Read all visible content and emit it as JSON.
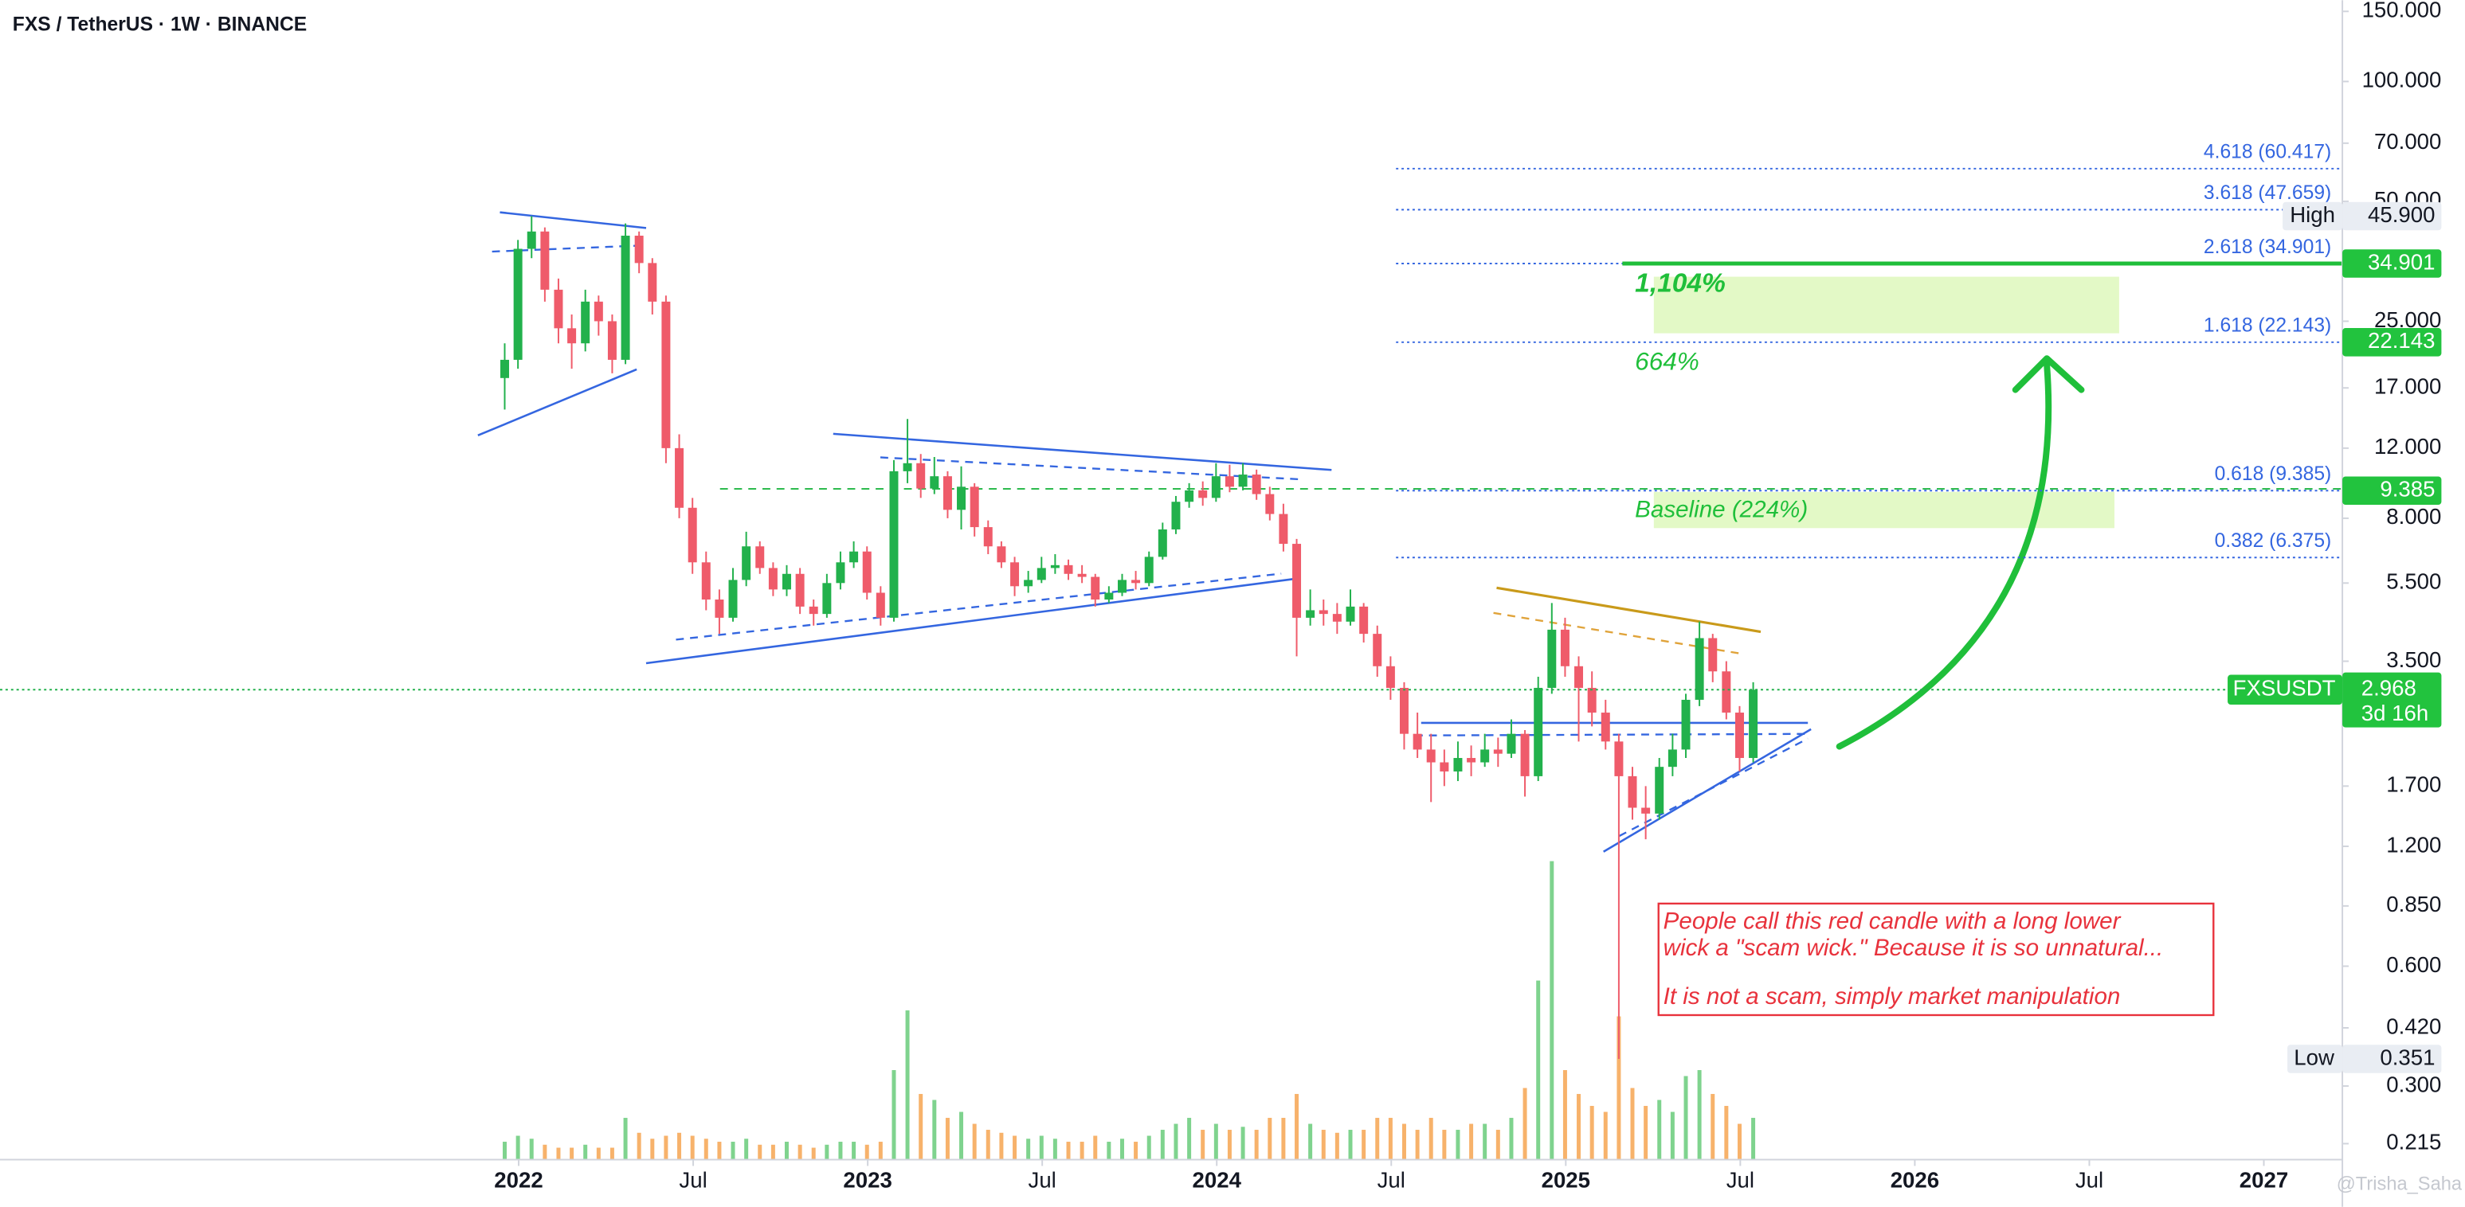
{
  "chart_data": {
    "type": "candlestick",
    "title": "FXS / TetherUS · 1W · BINANCE",
    "log_scale": true,
    "xlim": [
      2020.514,
      2027.225
    ],
    "ylim": [
      0.196,
      160
    ],
    "xticks": [
      2022,
      {
        "value": 2022.5,
        "label": "Jul"
      },
      2023,
      {
        "value": 2023.5,
        "label": "Jul"
      },
      2024,
      {
        "value": 2024.5,
        "label": "Jul"
      },
      2025,
      {
        "value": 2025.5,
        "label": "Jul"
      },
      2026,
      {
        "value": 2026.5,
        "label": "Jul"
      },
      2027
    ],
    "yticks": [
      {
        "value": 150,
        "label": "150.000"
      },
      {
        "value": 100,
        "label": "100.000"
      },
      {
        "value": 70,
        "label": "70.000"
      },
      {
        "value": 50,
        "label": "50.000"
      },
      {
        "value": 25,
        "label": "25.000"
      },
      {
        "value": 17,
        "label": "17.000"
      },
      {
        "value": 12,
        "label": "12.000"
      },
      {
        "value": 8,
        "label": "8.000"
      },
      {
        "value": 5.5,
        "label": "5.500"
      },
      {
        "value": 3.5,
        "label": "3.500"
      },
      {
        "value": 1.7,
        "label": "1.700"
      },
      {
        "value": 1.2,
        "label": "1.200"
      },
      {
        "value": 0.85,
        "label": "0.850"
      },
      {
        "value": 0.6,
        "label": "0.600"
      },
      {
        "value": 0.42,
        "label": "0.420"
      },
      {
        "value": 0.3,
        "label": "0.300"
      },
      0.215
    ],
    "colors": {
      "up": "#22b14c",
      "down": "#ef5b6a",
      "volume_up": "#7fd38e",
      "volume_down": "#f7b26b"
    },
    "x": [
      2021.96,
      2021.998,
      2022.037,
      2022.075,
      2022.114,
      2022.152,
      2022.191,
      2022.229,
      2022.268,
      2022.306,
      2022.345,
      2022.383,
      2022.422,
      2022.46,
      2022.498,
      2022.537,
      2022.575,
      2022.614,
      2022.652,
      2022.691,
      2022.729,
      2022.768,
      2022.806,
      2022.845,
      2022.883,
      2022.922,
      2022.96,
      2022.998,
      2023.037,
      2023.075,
      2023.114,
      2023.152,
      2023.191,
      2023.229,
      2023.268,
      2023.306,
      2023.345,
      2023.383,
      2023.421,
      2023.46,
      2023.498,
      2023.537,
      2023.575,
      2023.614,
      2023.652,
      2023.691,
      2023.729,
      2023.768,
      2023.806,
      2023.845,
      2023.883,
      2023.921,
      2023.96,
      2023.998,
      2024.037,
      2024.075,
      2024.114,
      2024.152,
      2024.191,
      2024.229,
      2024.268,
      2024.306,
      2024.345,
      2024.383,
      2024.421,
      2024.46,
      2024.498,
      2024.537,
      2024.575,
      2024.614,
      2024.652,
      2024.691,
      2024.729,
      2024.768,
      2024.806,
      2024.844,
      2024.883,
      2024.921,
      2024.96,
      2024.998,
      2025.037,
      2025.075,
      2025.114,
      2025.152,
      2025.191,
      2025.229,
      2025.268,
      2025.306,
      2025.344,
      2025.383,
      2025.421,
      2025.46,
      2025.498,
      2025.537
    ],
    "open": [
      18,
      20,
      38,
      42,
      30,
      24,
      22,
      28,
      25,
      20,
      41,
      35,
      28,
      12,
      8.5,
      6.2,
      5.0,
      4.5,
      5.6,
      6.8,
      6.0,
      5.3,
      5.8,
      4.8,
      4.6,
      5.5,
      6.2,
      6.6,
      5.2,
      4.5,
      10.5,
      11.0,
      9.5,
      10.2,
      8.4,
      9.6,
      7.6,
      6.8,
      6.2,
      5.4,
      5.6,
      6.0,
      6.1,
      5.8,
      5.7,
      5.0,
      5.2,
      5.6,
      5.5,
      6.4,
      7.5,
      8.8,
      9.4,
      9.0,
      10.2,
      9.6,
      10.3,
      9.2,
      8.2,
      6.9,
      4.5,
      4.7,
      4.6,
      4.4,
      4.8,
      4.1,
      3.4,
      3.0,
      2.3,
      2.1,
      1.95,
      1.85,
      2.0,
      1.95,
      2.1,
      2.05,
      2.3,
      1.8,
      3.0,
      4.2,
      3.4,
      3.0,
      2.6,
      2.2,
      1.8,
      1.5,
      1.45,
      1.9,
      2.1,
      2.8,
      4.0,
      3.3,
      2.6,
      2.0
    ],
    "high": [
      22,
      40,
      45.9,
      43,
      32,
      26,
      30,
      29,
      26,
      44,
      42,
      36,
      29,
      13,
      9,
      6.6,
      5.3,
      6.0,
      7.4,
      7.0,
      6.2,
      6.1,
      6.0,
      5.0,
      5.8,
      6.6,
      7.0,
      6.8,
      5.4,
      11.2,
      14.2,
      11.6,
      11.4,
      10.5,
      10.8,
      9.8,
      7.9,
      7.0,
      6.4,
      5.9,
      6.4,
      6.5,
      6.3,
      6.1,
      5.8,
      5.4,
      5.8,
      5.9,
      6.6,
      7.8,
      9.1,
      9.8,
      9.9,
      11.0,
      10.9,
      11.0,
      10.6,
      9.6,
      8.7,
      7.1,
      5.3,
      5.0,
      4.9,
      5.3,
      4.9,
      4.3,
      3.6,
      3.1,
      2.6,
      2.3,
      2.1,
      2.2,
      2.15,
      2.3,
      2.25,
      2.5,
      2.35,
      3.2,
      4.9,
      4.5,
      3.6,
      3.3,
      2.8,
      2.3,
      1.9,
      1.7,
      2.0,
      2.3,
      2.9,
      4.4,
      4.1,
      3.5,
      2.7,
      3.1
    ],
    "low": [
      15,
      19,
      36,
      28,
      22,
      19,
      21,
      23,
      18.5,
      19.5,
      33,
      26,
      11,
      8,
      5.8,
      4.7,
      4.1,
      4.4,
      5.4,
      5.8,
      5.1,
      5.1,
      4.6,
      4.3,
      4.5,
      5.3,
      6.0,
      5.0,
      4.3,
      4.4,
      9.8,
      9.0,
      9.2,
      8.0,
      7.5,
      7.2,
      6.5,
      6.0,
      5.1,
      5.2,
      5.5,
      5.8,
      5.6,
      5.5,
      4.8,
      4.9,
      5.1,
      5.3,
      5.4,
      6.3,
      7.3,
      8.5,
      8.6,
      8.8,
      9.3,
      9.4,
      8.9,
      7.9,
      6.6,
      3.6,
      4.3,
      4.3,
      4.1,
      4.3,
      3.9,
      3.2,
      2.8,
      2.1,
      2.0,
      1.55,
      1.7,
      1.75,
      1.8,
      1.9,
      1.9,
      2.0,
      1.6,
      1.75,
      2.9,
      3.2,
      2.2,
      2.4,
      2.1,
      0.351,
      1.4,
      1.25,
      1.4,
      1.8,
      2.0,
      2.7,
      3.1,
      2.5,
      1.85,
      1.95
    ],
    "close": [
      20,
      38,
      42,
      30,
      24,
      22,
      28,
      25,
      20,
      41,
      35,
      28,
      12,
      8.5,
      6.2,
      5.0,
      4.5,
      5.6,
      6.8,
      6.0,
      5.3,
      5.8,
      4.8,
      4.6,
      5.5,
      6.2,
      6.6,
      5.2,
      4.5,
      10.5,
      11.0,
      9.5,
      10.2,
      8.4,
      9.6,
      7.6,
      6.8,
      6.2,
      5.4,
      5.6,
      6.0,
      6.1,
      5.8,
      5.7,
      5.0,
      5.2,
      5.6,
      5.5,
      6.4,
      7.5,
      8.8,
      9.4,
      9.0,
      10.2,
      9.6,
      10.3,
      9.2,
      8.2,
      6.9,
      4.5,
      4.7,
      4.6,
      4.4,
      4.8,
      4.1,
      3.4,
      3.0,
      2.3,
      2.1,
      1.95,
      1.85,
      2.0,
      1.95,
      2.1,
      2.05,
      2.3,
      1.8,
      3.0,
      4.2,
      3.4,
      3.0,
      2.6,
      2.2,
      1.8,
      1.5,
      1.45,
      1.9,
      2.1,
      2.8,
      4.0,
      3.3,
      2.6,
      2.0,
      2.968
    ],
    "volume": [
      6,
      8,
      7,
      5,
      4,
      4,
      5,
      4,
      4,
      14,
      9,
      7,
      8,
      9,
      8,
      7,
      6,
      6,
      7,
      5,
      5,
      6,
      5,
      4,
      5,
      6,
      6,
      5,
      6,
      30,
      50,
      22,
      20,
      14,
      16,
      12,
      10,
      9,
      8,
      7,
      8,
      7,
      6,
      6,
      8,
      6,
      7,
      6,
      8,
      10,
      12,
      14,
      10,
      12,
      10,
      11,
      10,
      14,
      14,
      22,
      12,
      10,
      9,
      10,
      10,
      14,
      14,
      12,
      10,
      14,
      10,
      10,
      12,
      12,
      10,
      14,
      24,
      60,
      100,
      30,
      22,
      18,
      16,
      48,
      24,
      18,
      20,
      16,
      28,
      30,
      22,
      18,
      12,
      14
    ]
  },
  "fib_levels": [
    {
      "value": 60.417,
      "label": "4.618 (60.417)"
    },
    {
      "value": 47.659,
      "label": "3.618 (47.659)"
    },
    {
      "value": 34.901,
      "label": "2.618 (34.901)"
    },
    {
      "value": 22.143,
      "label": "1.618 (22.143)"
    },
    {
      "value": 9.385,
      "label": "0.618 (9.385)"
    },
    {
      "value": 6.375,
      "label": "0.382 (6.375)"
    }
  ],
  "price_tags": [
    34.901,
    22.143,
    9.385
  ],
  "high": {
    "name": "High",
    "value": 45.9,
    "label": "45.900"
  },
  "low": {
    "name": "Low",
    "value": 0.351
  },
  "last_price": {
    "symbol": "FXSUSDT",
    "value": 2.968,
    "countdown": "3d 16h"
  },
  "annotations": {
    "target_gain": "1,104%",
    "mid_gain": "664%",
    "baseline": "Baseline (224%)",
    "note": [
      "People call this red candle with a long lower",
      "wick a \"scam wick.\" Because it is so unnatural...",
      "It is not a scam, simply market manipulation"
    ]
  },
  "watermark": "@Trisha_Saha"
}
